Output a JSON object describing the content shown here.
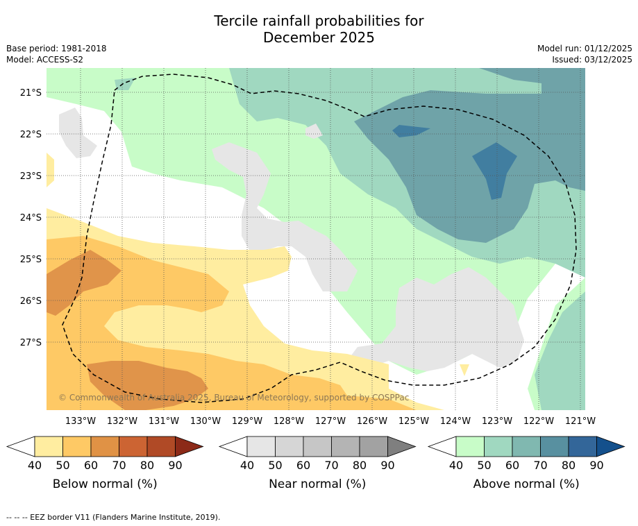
{
  "title_line1": "Tercile rainfall probabilities for",
  "title_line2": "December 2025",
  "meta_left": {
    "base_period": "Base period: 1981-2018",
    "model": "Model: ACCESS-S2"
  },
  "meta_right": {
    "model_run": "Model run: 01/12/2025",
    "issued": "Issued: 03/12/2025"
  },
  "copyright": "© Commonwealth of Australia 2025, Bureau of Meteorology, supported by COSPPac",
  "footer": "--  --  -- EEZ border V11 (Flanders Marine Institute, 2019).",
  "map": {
    "lon_labels": [
      "133°W",
      "132°W",
      "131°W",
      "130°W",
      "129°W",
      "128°W",
      "127°W",
      "126°W",
      "125°W",
      "124°W",
      "123°W",
      "122°W",
      "121°W"
    ],
    "lat_labels": [
      "21°S",
      "22°S",
      "23°S",
      "24°S",
      "25°S",
      "26°S",
      "27°S"
    ]
  },
  "colorbars": [
    {
      "id": "below",
      "title": "Below normal (%)",
      "ticks": [
        "40",
        "50",
        "60",
        "70",
        "80",
        "90"
      ],
      "colors": [
        "#ffffff",
        "#ffeda0",
        "#fec965",
        "#e09245",
        "#cc6433",
        "#b04a26",
        "#8c2a18"
      ]
    },
    {
      "id": "near",
      "title": "Near normal (%)",
      "ticks": [
        "40",
        "50",
        "60",
        "70",
        "80",
        "90"
      ],
      "colors": [
        "#ffffff",
        "#e6e6e6",
        "#d6d6d6",
        "#c6c6c6",
        "#b4b4b4",
        "#a2a2a2",
        "#7f7f7f"
      ]
    },
    {
      "id": "above",
      "title": "Above normal (%)",
      "ticks": [
        "40",
        "50",
        "60",
        "70",
        "80",
        "90"
      ],
      "colors": [
        "#ffffff",
        "#c8fcc8",
        "#a0d8c0",
        "#80b8b0",
        "#5890a0",
        "#336699",
        "#14508c"
      ]
    }
  ]
}
